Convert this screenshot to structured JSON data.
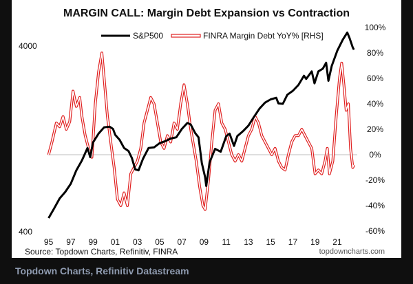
{
  "chart_data": {
    "type": "line",
    "title": "MARGIN CALL: Margin Debt Expansion vs Contraction",
    "x_tick_labels": [
      "95",
      "97",
      "99",
      "01",
      "03",
      "05",
      "07",
      "09",
      "11",
      "13",
      "15",
      "17",
      "19",
      "21"
    ],
    "x_tick_years": [
      1995,
      1997,
      1999,
      2001,
      2003,
      2005,
      2007,
      2009,
      2011,
      2013,
      2015,
      2017,
      2019,
      2021
    ],
    "x_range": [
      1994.9,
      2022.8
    ],
    "left_axis": {
      "scale": "log",
      "range": [
        400,
        5000
      ],
      "tick_labels": [
        "4000",
        "400"
      ],
      "tick_values": [
        4000,
        400
      ]
    },
    "right_axis": {
      "range": [
        -60,
        100
      ],
      "tick_labels": [
        "100%",
        "80%",
        "60%",
        "40%",
        "20%",
        "0%",
        "-20%",
        "-40%",
        "-60%"
      ],
      "tick_values": [
        100,
        80,
        60,
        40,
        20,
        0,
        -20,
        -40,
        -60
      ]
    },
    "legend": [
      "S&P500",
      "FINRA Margin Debt YoY% [RHS]"
    ],
    "series": [
      {
        "name": "S&P500",
        "axis": "left",
        "color": "#000000",
        "points": [
          [
            1995.0,
            470
          ],
          [
            1995.5,
            530
          ],
          [
            1996.0,
            600
          ],
          [
            1996.5,
            650
          ],
          [
            1997.0,
            720
          ],
          [
            1997.5,
            850
          ],
          [
            1998.0,
            960
          ],
          [
            1998.5,
            1120
          ],
          [
            1998.75,
            1000
          ],
          [
            1999.0,
            1200
          ],
          [
            1999.5,
            1340
          ],
          [
            2000.0,
            1450
          ],
          [
            2000.5,
            1460
          ],
          [
            2000.8,
            1420
          ],
          [
            2001.0,
            1320
          ],
          [
            2001.4,
            1240
          ],
          [
            2001.8,
            1120
          ],
          [
            2002.2,
            1080
          ],
          [
            2002.5,
            990
          ],
          [
            2002.8,
            860
          ],
          [
            2003.1,
            850
          ],
          [
            2003.5,
            980
          ],
          [
            2004.0,
            1120
          ],
          [
            2004.5,
            1130
          ],
          [
            2005.0,
            1190
          ],
          [
            2005.5,
            1220
          ],
          [
            2006.0,
            1260
          ],
          [
            2006.5,
            1280
          ],
          [
            2007.0,
            1420
          ],
          [
            2007.5,
            1530
          ],
          [
            2007.8,
            1500
          ],
          [
            2008.2,
            1350
          ],
          [
            2008.5,
            1280
          ],
          [
            2008.8,
            930
          ],
          [
            2009.1,
            780
          ],
          [
            2009.2,
            700
          ],
          [
            2009.5,
            940
          ],
          [
            2010.0,
            1110
          ],
          [
            2010.5,
            1070
          ],
          [
            2011.0,
            1300
          ],
          [
            2011.3,
            1340
          ],
          [
            2011.7,
            1150
          ],
          [
            2012.0,
            1300
          ],
          [
            2012.5,
            1380
          ],
          [
            2013.0,
            1480
          ],
          [
            2013.5,
            1650
          ],
          [
            2014.0,
            1830
          ],
          [
            2014.5,
            1970
          ],
          [
            2015.0,
            2050
          ],
          [
            2015.5,
            2090
          ],
          [
            2015.7,
            1950
          ],
          [
            2016.1,
            1940
          ],
          [
            2016.5,
            2170
          ],
          [
            2017.0,
            2280
          ],
          [
            2017.5,
            2450
          ],
          [
            2018.0,
            2750
          ],
          [
            2018.2,
            2640
          ],
          [
            2018.7,
            2900
          ],
          [
            2018.95,
            2500
          ],
          [
            2019.3,
            2900
          ],
          [
            2019.7,
            3000
          ],
          [
            2020.0,
            3230
          ],
          [
            2020.2,
            2580
          ],
          [
            2020.5,
            3100
          ],
          [
            2021.0,
            3750
          ],
          [
            2021.5,
            4300
          ],
          [
            2021.9,
            4700
          ],
          [
            2022.1,
            4400
          ],
          [
            2022.4,
            3900
          ],
          [
            2022.5,
            3800
          ]
        ]
      },
      {
        "name": "FINRA Margin Debt YoY% [RHS]",
        "axis": "right",
        "color": "#e02020",
        "points": [
          [
            1995.0,
            0
          ],
          [
            1995.3,
            10
          ],
          [
            1995.7,
            25
          ],
          [
            1996.0,
            22
          ],
          [
            1996.3,
            30
          ],
          [
            1996.6,
            20
          ],
          [
            1996.9,
            26
          ],
          [
            1997.2,
            50
          ],
          [
            1997.5,
            38
          ],
          [
            1997.8,
            45
          ],
          [
            1998.0,
            30
          ],
          [
            1998.3,
            15
          ],
          [
            1998.6,
            5
          ],
          [
            1998.9,
            -2
          ],
          [
            1999.2,
            40
          ],
          [
            1999.5,
            65
          ],
          [
            1999.8,
            80
          ],
          [
            2000.0,
            60
          ],
          [
            2000.3,
            30
          ],
          [
            2000.6,
            10
          ],
          [
            2000.9,
            -10
          ],
          [
            2001.2,
            -35
          ],
          [
            2001.5,
            -40
          ],
          [
            2001.8,
            -30
          ],
          [
            2002.1,
            -40
          ],
          [
            2002.4,
            -15
          ],
          [
            2002.7,
            -10
          ],
          [
            2003.0,
            -5
          ],
          [
            2003.3,
            5
          ],
          [
            2003.6,
            25
          ],
          [
            2003.9,
            35
          ],
          [
            2004.2,
            45
          ],
          [
            2004.5,
            40
          ],
          [
            2004.8,
            25
          ],
          [
            2005.1,
            10
          ],
          [
            2005.4,
            5
          ],
          [
            2005.7,
            15
          ],
          [
            2006.0,
            10
          ],
          [
            2006.3,
            25
          ],
          [
            2006.6,
            20
          ],
          [
            2006.9,
            40
          ],
          [
            2007.2,
            55
          ],
          [
            2007.5,
            40
          ],
          [
            2007.8,
            20
          ],
          [
            2008.0,
            10
          ],
          [
            2008.3,
            -5
          ],
          [
            2008.6,
            -25
          ],
          [
            2008.9,
            -40
          ],
          [
            2009.1,
            -43
          ],
          [
            2009.4,
            -20
          ],
          [
            2009.7,
            10
          ],
          [
            2010.0,
            35
          ],
          [
            2010.3,
            40
          ],
          [
            2010.6,
            25
          ],
          [
            2010.9,
            20
          ],
          [
            2011.2,
            10
          ],
          [
            2011.5,
            0
          ],
          [
            2011.8,
            -5
          ],
          [
            2012.1,
            0
          ],
          [
            2012.4,
            -5
          ],
          [
            2012.7,
            5
          ],
          [
            2013.0,
            15
          ],
          [
            2013.3,
            20
          ],
          [
            2013.6,
            30
          ],
          [
            2013.9,
            25
          ],
          [
            2014.2,
            15
          ],
          [
            2014.5,
            10
          ],
          [
            2014.8,
            5
          ],
          [
            2015.1,
            0
          ],
          [
            2015.4,
            5
          ],
          [
            2015.7,
            -5
          ],
          [
            2016.0,
            -10
          ],
          [
            2016.3,
            -12
          ],
          [
            2016.6,
            0
          ],
          [
            2016.9,
            10
          ],
          [
            2017.2,
            15
          ],
          [
            2017.5,
            15
          ],
          [
            2017.8,
            20
          ],
          [
            2018.1,
            15
          ],
          [
            2018.4,
            10
          ],
          [
            2018.7,
            5
          ],
          [
            2019.0,
            -15
          ],
          [
            2019.3,
            -12
          ],
          [
            2019.6,
            -15
          ],
          [
            2019.9,
            -5
          ],
          [
            2020.1,
            5
          ],
          [
            2020.3,
            -15
          ],
          [
            2020.6,
            -5
          ],
          [
            2020.9,
            30
          ],
          [
            2021.2,
            60
          ],
          [
            2021.4,
            72
          ],
          [
            2021.6,
            55
          ],
          [
            2021.8,
            35
          ],
          [
            2022.0,
            40
          ],
          [
            2022.2,
            5
          ],
          [
            2022.4,
            -10
          ],
          [
            2022.5,
            -8
          ]
        ]
      }
    ],
    "zero_line": true,
    "grid": false,
    "legend_position": "top"
  },
  "source_text": "Source: Topdown Charts, Refinitiv, FINRA",
  "brand_text": "topdowncharts.com",
  "footer_caption": "Topdown Charts, Refinitiv Datastream"
}
